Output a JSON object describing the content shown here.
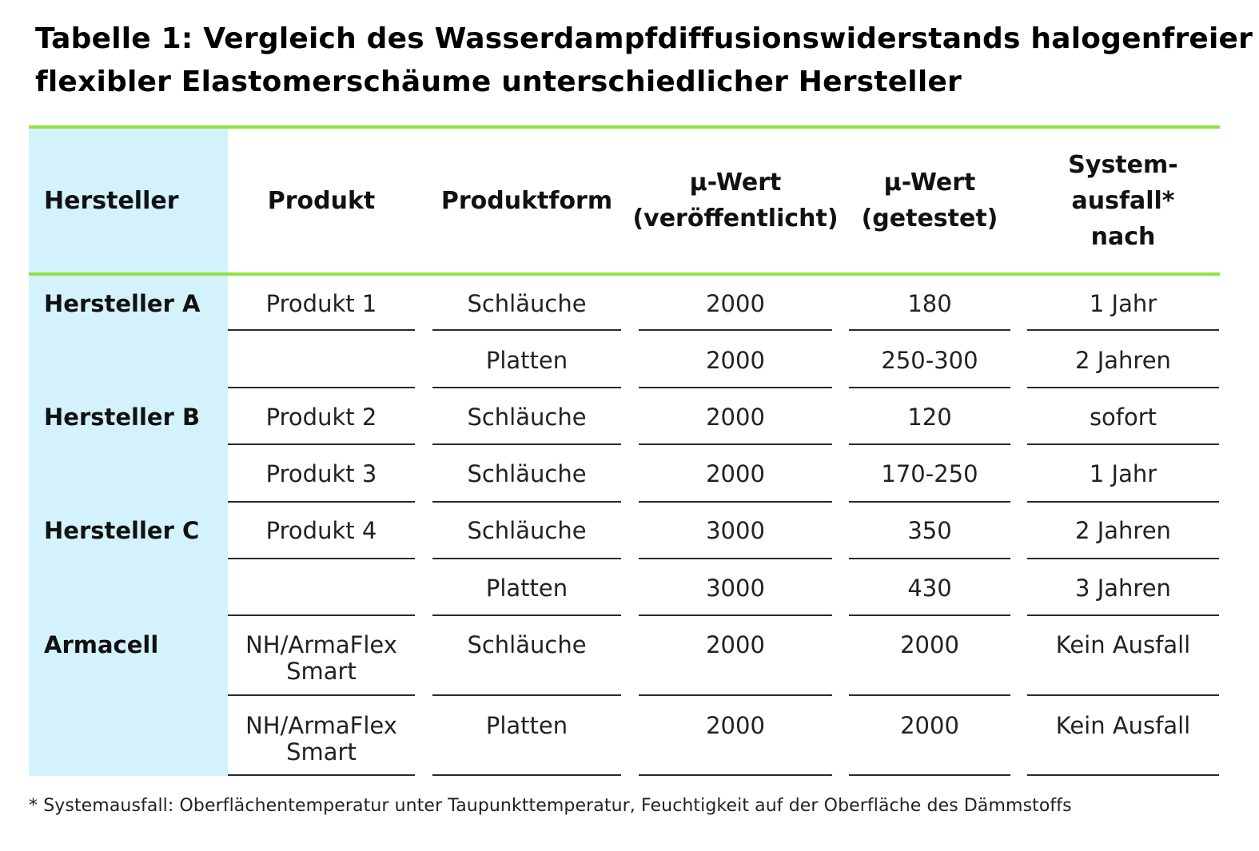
{
  "title_lines": [
    "Tabelle 1: Vergleich des Wasserdampfdiffusionswiderstands halogenfreier",
    "flexibler Elastomerschäume unterschiedlicher Hersteller"
  ],
  "columns": {
    "hersteller": "Hersteller",
    "produkt": "Produkt",
    "produktform": "Produktform",
    "mu_pub": [
      "µ-Wert",
      "(veröffentlicht)"
    ],
    "mu_test": [
      "µ-Wert",
      "(getestet)"
    ],
    "ausfall": [
      "System-",
      "ausfall*",
      "nach"
    ]
  },
  "manufacturers": [
    "Hersteller A",
    "Hersteller B",
    "Hersteller C",
    "Armacell"
  ],
  "rows": [
    {
      "product": [
        "Produkt 1"
      ],
      "form": "Schläuche",
      "mu_pub": "2000",
      "mu_test": "180",
      "failure": "1 Jahr"
    },
    {
      "product": [],
      "form": "Platten",
      "mu_pub": "2000",
      "mu_test": "250-300",
      "failure": "2 Jahren"
    },
    {
      "product": [
        "Produkt 2"
      ],
      "form": "Schläuche",
      "mu_pub": "2000",
      "mu_test": "120",
      "failure": "sofort"
    },
    {
      "product": [
        "Produkt 3"
      ],
      "form": "Schläuche",
      "mu_pub": "2000",
      "mu_test": "170-250",
      "failure": "1 Jahr"
    },
    {
      "product": [
        "Produkt 4"
      ],
      "form": "Schläuche",
      "mu_pub": "3000",
      "mu_test": "350",
      "failure": "2 Jahren"
    },
    {
      "product": [],
      "form": "Platten",
      "mu_pub": "3000",
      "mu_test": "430",
      "failure": "3 Jahren"
    },
    {
      "product": [
        "NH/ArmaFlex",
        "Smart"
      ],
      "form": "Schläuche",
      "mu_pub": "2000",
      "mu_test": "2000",
      "failure": "Kein Ausfall"
    },
    {
      "product": [
        "NH/ArmaFlex",
        "Smart"
      ],
      "form": "Platten",
      "mu_pub": "2000",
      "mu_test": "2000",
      "failure": "Kein Ausfall"
    }
  ],
  "footnote": "* Systemausfall: Oberflächentemperatur unter Taupunkttemperatur, Feuchtigkeit auf der Oberfläche des Dämmstoffs",
  "colors": {
    "accent_line": "#8be53c",
    "band": "#d3f2fc"
  }
}
